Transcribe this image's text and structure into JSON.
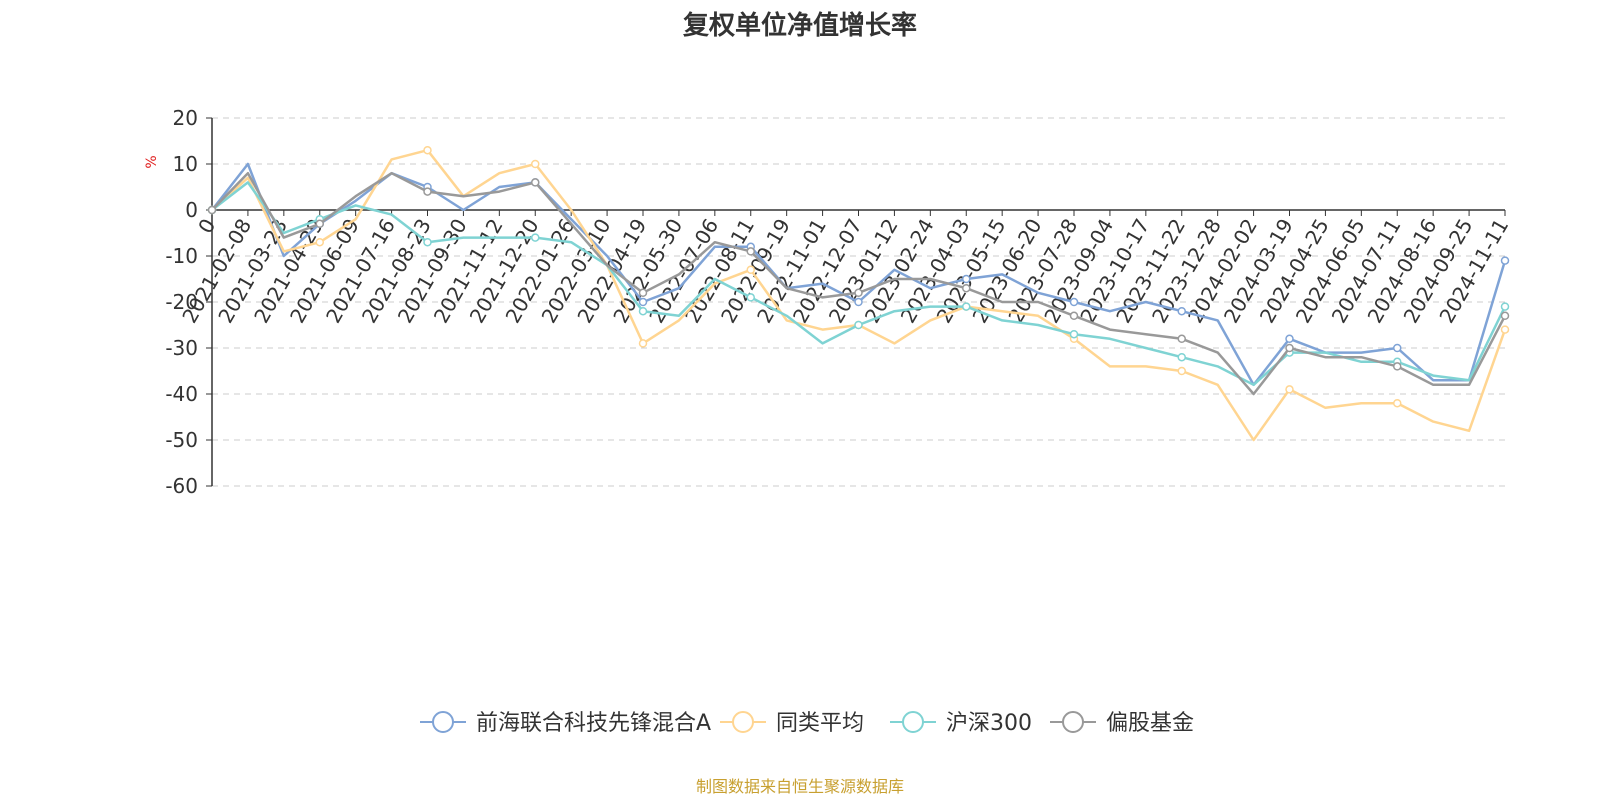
{
  "chart_data": {
    "type": "line",
    "title": "复权单位净值增长率",
    "ylabel": "%",
    "ylim": [
      -60,
      20
    ],
    "yticks": [
      20,
      10,
      0,
      -10,
      -20,
      -30,
      -40,
      -50,
      -60
    ],
    "grid": true,
    "legend_position": "bottom",
    "source": "制图数据来自恒生聚源数据库",
    "x": [
      "0",
      "2021-02-08",
      "2021-03-23",
      "2021-04-29",
      "2021-06-09",
      "2021-07-16",
      "2021-08-23",
      "2021-09-30",
      "2021-11-12",
      "2021-12-20",
      "2022-01-26",
      "2022-03-10",
      "2022-04-19",
      "2022-05-30",
      "2022-07-06",
      "2022-08-11",
      "2022-09-19",
      "2022-11-01",
      "2022-12-07",
      "2023-01-12",
      "2023-02-24",
      "2023-04-03",
      "2023-05-15",
      "2023-06-20",
      "2023-07-28",
      "2023-09-04",
      "2023-10-17",
      "2023-11-22",
      "2023-12-28",
      "2024-02-02",
      "2024-03-19",
      "2024-04-25",
      "2024-06-05",
      "2024-07-11",
      "2024-08-16",
      "2024-09-25",
      "2024-11-11"
    ],
    "series": [
      {
        "name": "前海联合科技先锋混合A",
        "color": "#7fa3d6",
        "values": [
          0,
          10,
          -10,
          -3,
          2,
          8,
          5,
          0,
          5,
          6,
          -2,
          -10,
          -20,
          -17,
          -8,
          -8,
          -17,
          -16,
          -20,
          -13,
          -17,
          -15,
          -14,
          -18,
          -20,
          -22,
          -20,
          -22,
          -24,
          -38,
          -28,
          -31,
          -31,
          -30,
          -37,
          -37,
          -11
        ]
      },
      {
        "name": "同类平均",
        "color": "#ffd591",
        "values": [
          0,
          7,
          -9,
          -7,
          -2,
          11,
          13,
          3,
          8,
          10,
          0,
          -12,
          -29,
          -24,
          -16,
          -13,
          -24,
          -26,
          -25,
          -29,
          -24,
          -21,
          -22,
          -23,
          -28,
          -34,
          -34,
          -35,
          -38,
          -50,
          -39,
          -43,
          -42,
          -42,
          -46,
          -48,
          -26
        ]
      },
      {
        "name": "沪深300",
        "color": "#7fd3d3",
        "values": [
          0,
          6,
          -5,
          -2,
          1,
          -1,
          -7,
          -6,
          -6,
          -6,
          -7,
          -12,
          -22,
          -23,
          -15,
          -19,
          -23,
          -29,
          -25,
          -22,
          -21,
          -21,
          -24,
          -25,
          -27,
          -28,
          -30,
          -32,
          -34,
          -38,
          -31,
          -31,
          -33,
          -33,
          -36,
          -37,
          -21
        ]
      },
      {
        "name": "偏股基金",
        "color": "#999999",
        "values": [
          0,
          8,
          -6,
          -3,
          3,
          8,
          4,
          3,
          4,
          6,
          -3,
          -12,
          -18,
          -14,
          -7,
          -9,
          -17,
          -19,
          -18,
          -15,
          -15,
          -17,
          -20,
          -20,
          -23,
          -26,
          -27,
          -28,
          -31,
          -40,
          -30,
          -32,
          -32,
          -34,
          -38,
          -38,
          -23
        ]
      }
    ]
  }
}
